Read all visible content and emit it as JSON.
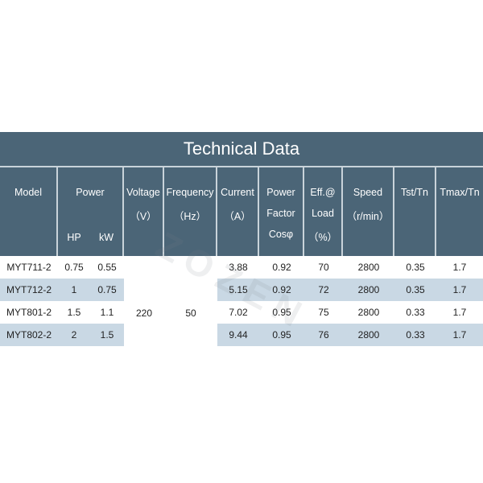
{
  "title": "Technical Data",
  "headers": {
    "model": "Model",
    "power": "Power",
    "power_hp": "HP",
    "power_kw": "kW",
    "voltage": "Voltage",
    "voltage_unit": "（V）",
    "frequency": "Frequency",
    "frequency_unit": "（Hz）",
    "current": "Current",
    "current_unit": "（A）",
    "power_factor_1": "Power",
    "power_factor_2": "Factor",
    "power_factor_3": "Cosφ",
    "eff_1": "Eff.@",
    "eff_2": "Load",
    "eff_3": "（%）",
    "speed": "Speed",
    "speed_unit": "（r/min）",
    "tst": "Tst/Tn",
    "tmax": "Tmax/Tn"
  },
  "shared": {
    "voltage": "220",
    "frequency": "50"
  },
  "rows": [
    {
      "model": "MYT711-2",
      "hp": "0.75",
      "kw": "0.55",
      "current": "3.88",
      "pf": "0.92",
      "eff": "70",
      "speed": "2800",
      "tst": "0.35",
      "tmax": "1.7"
    },
    {
      "model": "MYT712-2",
      "hp": "1",
      "kw": "0.75",
      "current": "5.15",
      "pf": "0.92",
      "eff": "72",
      "speed": "2800",
      "tst": "0.35",
      "tmax": "1.7"
    },
    {
      "model": "MYT801-2",
      "hp": "1.5",
      "kw": "1.1",
      "current": "7.02",
      "pf": "0.95",
      "eff": "75",
      "speed": "2800",
      "tst": "0.33",
      "tmax": "1.7"
    },
    {
      "model": "MYT802-2",
      "hp": "2",
      "kw": "1.5",
      "current": "9.44",
      "pf": "0.95",
      "eff": "76",
      "speed": "2800",
      "tst": "0.33",
      "tmax": "1.7"
    }
  ],
  "watermark": "ZOZEN",
  "colors": {
    "header_bg": "#4b6577",
    "band": "#c9d8e4",
    "divider": "#c9d3da"
  }
}
